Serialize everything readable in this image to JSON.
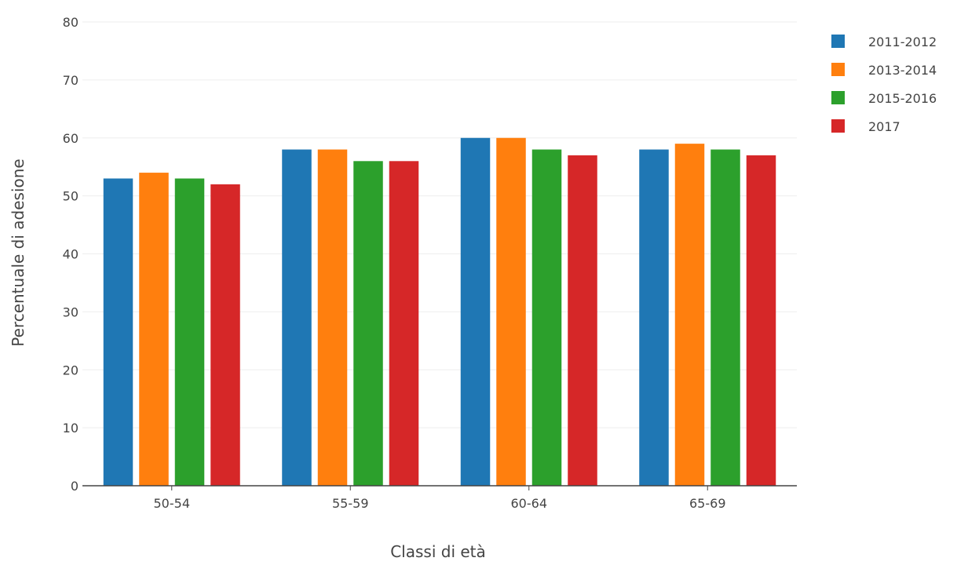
{
  "chart_data": {
    "type": "bar",
    "xlabel": "Classi di età",
    "ylabel": "Percentuale di adesione",
    "ylim": [
      0,
      80
    ],
    "yticks": [
      0,
      10,
      20,
      30,
      40,
      50,
      60,
      70,
      80
    ],
    "grid": true,
    "legend_position": "top-right",
    "categories": [
      "50-54",
      "55-59",
      "60-64",
      "65-69"
    ],
    "series": [
      {
        "name": "2011-2012",
        "color": "#1f77b4",
        "values": [
          53,
          58,
          60,
          58
        ]
      },
      {
        "name": "2013-2014",
        "color": "#ff7f0e",
        "values": [
          54,
          58,
          60,
          59
        ]
      },
      {
        "name": "2015-2016",
        "color": "#2ca02c",
        "values": [
          53,
          56,
          58,
          58
        ]
      },
      {
        "name": "2017",
        "color": "#d62728",
        "values": [
          52,
          56,
          57,
          57
        ]
      }
    ]
  }
}
